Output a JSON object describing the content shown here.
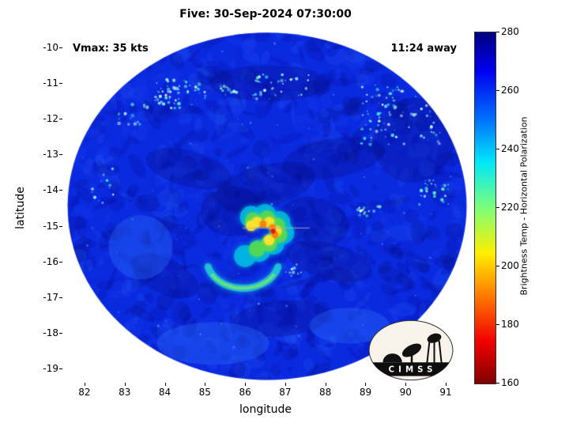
{
  "logo": {
    "text": "CIMSS"
  },
  "chart_data": {
    "type": "heatmap",
    "title": "Five: 30-Sep-2024 07:30:00",
    "xlabel": "longitude",
    "ylabel": "latitude",
    "annotations": {
      "vmax": "Vmax: 35 kts",
      "eta": "11:24 away"
    },
    "xlim": [
      81.47,
      91.55
    ],
    "ylim": [
      -19.4,
      -9.51
    ],
    "x_ticks": [
      82,
      83,
      84,
      85,
      86,
      87,
      88,
      89,
      90,
      91
    ],
    "y_ticks": [
      -10,
      -11,
      -12,
      -13,
      -14,
      -15,
      -16,
      -17,
      -18,
      -19
    ],
    "grid": false,
    "colorbar": {
      "label": "Brightness Temp - Horizontal Polarization",
      "ticks": [
        160,
        180,
        200,
        220,
        240,
        260,
        280
      ],
      "min": 160,
      "max": 280,
      "colormap": "jet-reversed (280K dark blue at top, 160K dark red at bottom)"
    },
    "swath": {
      "center_lon": 86.55,
      "center_lat": -14.45,
      "radius_lon": 4.97,
      "radius_lat": 4.87,
      "background_temp_K": 262
    },
    "features": {
      "dark_patches": [
        {
          "lon": 86.5,
          "lat": -13.9,
          "rx": 1.3,
          "ry": 0.6,
          "rot": -15
        },
        {
          "lon": 85.7,
          "lat": -14.6,
          "rx": 0.8,
          "ry": 0.7,
          "rot": 0
        },
        {
          "lon": 87.7,
          "lat": -14.9,
          "rx": 0.9,
          "ry": 0.7,
          "rot": 10
        },
        {
          "lon": 84.6,
          "lat": -13.4,
          "rx": 1.1,
          "ry": 0.5,
          "rot": 15
        },
        {
          "lon": 88.2,
          "lat": -13.1,
          "rx": 1.3,
          "ry": 0.55,
          "rot": -10
        },
        {
          "lon": 90.2,
          "lat": -12.6,
          "rx": 1.0,
          "ry": 1.2,
          "rot": 25
        },
        {
          "lon": 86.6,
          "lat": -11.0,
          "rx": 1.5,
          "ry": 0.5,
          "rot": 0
        },
        {
          "lon": 88.1,
          "lat": -16.0,
          "rx": 1.1,
          "ry": 0.5,
          "rot": 15
        },
        {
          "lon": 84.0,
          "lat": -16.4,
          "rx": 0.9,
          "ry": 0.5,
          "rot": 25
        },
        {
          "lon": 86.9,
          "lat": -17.6,
          "rx": 1.2,
          "ry": 0.5,
          "rot": -5
        }
      ],
      "light_patches": [
        {
          "lon": 85.2,
          "lat": -18.3,
          "rx": 1.4,
          "ry": 0.6
        },
        {
          "lon": 83.4,
          "lat": -15.6,
          "rx": 0.8,
          "ry": 0.9
        },
        {
          "lon": 88.6,
          "lat": -17.8,
          "rx": 1.0,
          "ry": 0.5
        }
      ],
      "speckle_clusters": [
        {
          "lon": 84.4,
          "lat": -11.3,
          "rlon": 0.65,
          "rlat": 0.4,
          "n": 55
        },
        {
          "lon": 86.9,
          "lat": -11.1,
          "rlon": 0.7,
          "rlat": 0.35,
          "n": 35
        },
        {
          "lon": 89.9,
          "lat": -11.9,
          "rlon": 1.0,
          "rlat": 0.85,
          "n": 95
        },
        {
          "lon": 90.7,
          "lat": -14.05,
          "rlon": 0.4,
          "rlat": 0.35,
          "n": 28
        },
        {
          "lon": 89.1,
          "lat": -14.6,
          "rlon": 0.3,
          "rlat": 0.15,
          "n": 16
        },
        {
          "lon": 85.5,
          "lat": -11.2,
          "rlon": 0.3,
          "rlat": 0.15,
          "n": 12
        },
        {
          "lon": 83.2,
          "lat": -11.9,
          "rlon": 0.4,
          "rlat": 0.3,
          "n": 16
        },
        {
          "lon": 82.4,
          "lat": -13.9,
          "rlon": 0.35,
          "rlat": 0.5,
          "n": 12
        },
        {
          "lon": 87.2,
          "lat": -16.25,
          "rlon": 0.25,
          "rlat": 0.2,
          "n": 10
        }
      ],
      "scattered_speckles": 70,
      "rainband": {
        "center_lon": 85.95,
        "center_lat": -15.95,
        "radius_lon": 0.9,
        "radius_lat": 0.8
      },
      "core": {
        "cyan": [
          [
            86.15,
            -14.75
          ],
          [
            86.5,
            -14.7
          ],
          [
            86.85,
            -14.9
          ],
          [
            86.95,
            -15.2
          ],
          [
            86.7,
            -15.5
          ],
          [
            86.35,
            -15.7
          ],
          [
            86.0,
            -15.85
          ]
        ],
        "green": [
          [
            86.2,
            -14.85
          ],
          [
            86.55,
            -14.8
          ],
          [
            86.8,
            -15.0
          ],
          [
            86.85,
            -15.25
          ],
          [
            86.6,
            -15.5
          ],
          [
            86.3,
            -15.65
          ]
        ],
        "yellow": [
          [
            86.3,
            -14.9
          ],
          [
            86.6,
            -14.9
          ],
          [
            86.78,
            -15.15
          ],
          [
            86.6,
            -15.4
          ],
          [
            86.15,
            -15.0
          ]
        ],
        "orange": [
          [
            86.68,
            -15.05
          ],
          [
            86.75,
            -15.25
          ],
          [
            86.45,
            -14.95
          ]
        ],
        "red": [
          [
            86.7,
            -15.15
          ]
        ]
      },
      "center_line": {
        "lat": -15.05,
        "lon_from": 85.95,
        "lon_to": 87.6
      }
    }
  }
}
